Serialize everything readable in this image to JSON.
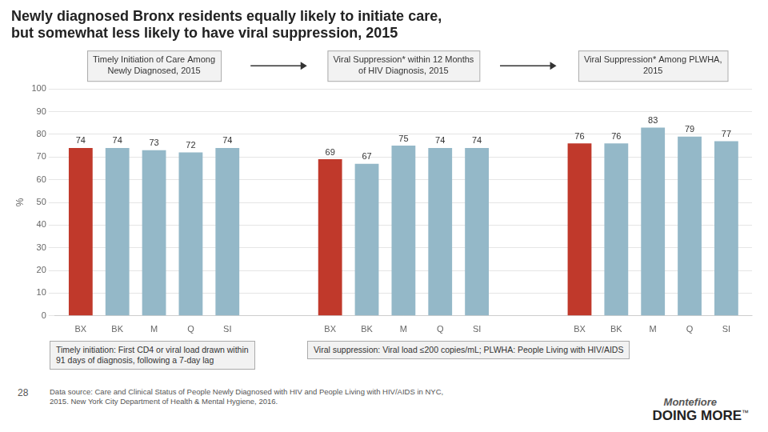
{
  "chart_data": {
    "type": "bar",
    "title": [
      "Newly diagnosed Bronx residents equally likely to initiate care,",
      "but somewhat less likely to have viral suppression, 2015"
    ],
    "categories": [
      "BX",
      "BK",
      "M",
      "Q",
      "SI"
    ],
    "series": [
      {
        "name": "Timely Initiation of Care Among\nNewly Diagnosed, 2015",
        "values": [
          74,
          74,
          73,
          72,
          74
        ],
        "colors": [
          "#c0392b",
          "#94b8c8",
          "#94b8c8",
          "#94b8c8",
          "#94b8c8"
        ]
      },
      {
        "name": "Viral Suppression* within 12 Months\nof HIV Diagnosis, 2015",
        "values": [
          69,
          67,
          75,
          74,
          74
        ],
        "colors": [
          "#c0392b",
          "#94b8c8",
          "#94b8c8",
          "#94b8c8",
          "#94b8c8"
        ]
      },
      {
        "name": "Viral Suppression* Among PLWHA,\n2015",
        "values": [
          76,
          76,
          83,
          79,
          77
        ],
        "colors": [
          "#c0392b",
          "#94b8c8",
          "#94b8c8",
          "#94b8c8",
          "#94b8c8"
        ]
      }
    ],
    "ylabel": "%",
    "ylim": [
      0,
      100
    ],
    "yticks": [
      0,
      10,
      20,
      30,
      40,
      50,
      60,
      70,
      80,
      90,
      100
    ],
    "grid": true,
    "data_labels": true,
    "annotations": [
      "Timely initiation: First CD4 or viral load drawn within\n91 days of diagnosis, following a 7-day lag",
      "Viral suppression: Viral load ≤200 copies/mL; PLWHA: People Living with HIV/AIDS",
      "28",
      "Data source: Care and Clinical Status of People Newly Diagnosed with HIV and People Living with HIV/AIDS in NYC,\n2015. New York City Department of Health & Mental Hygiene, 2016.",
      "Montefiore",
      "DOING MORE",
      "™"
    ]
  }
}
